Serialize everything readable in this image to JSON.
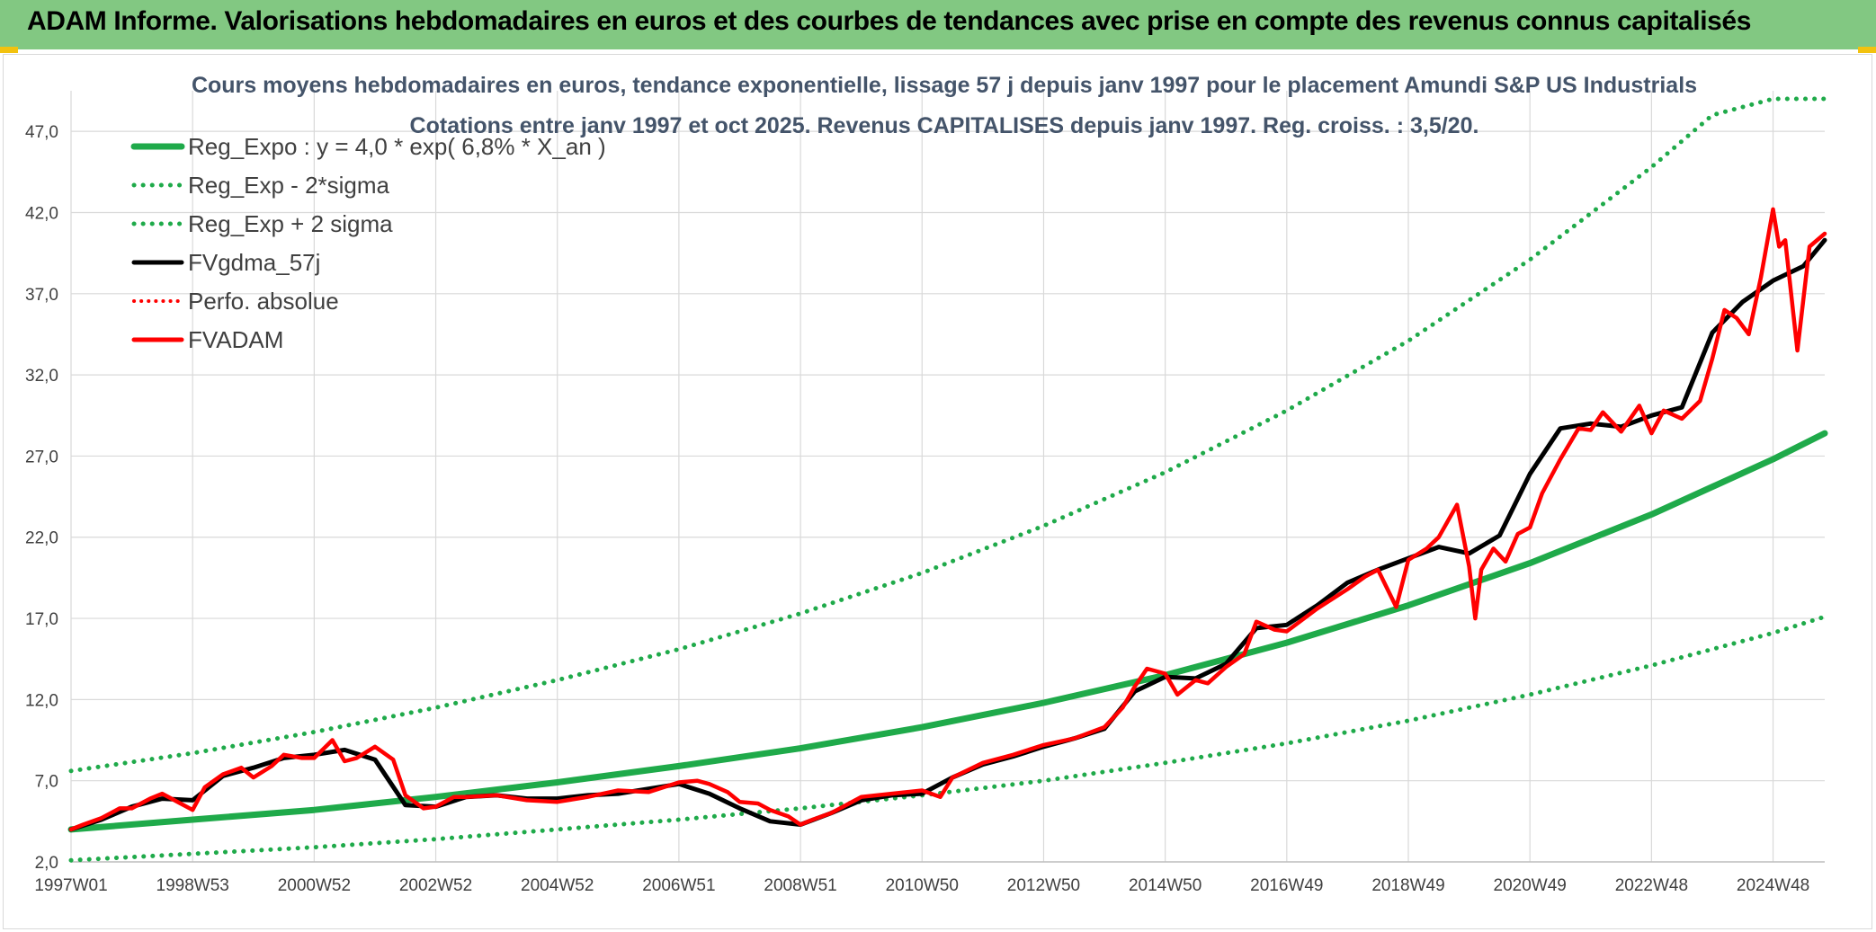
{
  "header": {
    "title": "ADAM Informe. Valorisations hebdomadaires en euros et des courbes de tendances avec prise en compte des revenus connus capitalisés"
  },
  "chart_data": {
    "type": "line",
    "title_lines": [
      "Cours moyens hebdomadaires en euros, tendance exponentielle, lissage 57 j depuis janv 1997 pour le placement Amundi S&P US Industrials",
      "Cotations entre janv 1997 et oct 2025. Revenus CAPITALISES depuis janv 1997. Reg. croiss. : 3,5/20."
    ],
    "x_tick_labels": [
      "1997W01",
      "1998W53",
      "2000W52",
      "2002W52",
      "2004W52",
      "2006W51",
      "2008W51",
      "2010W50",
      "2012W50",
      "2014W50",
      "2016W49",
      "2018W49",
      "2020W49",
      "2022W48",
      "2024W48"
    ],
    "x_tick_years": [
      1997.0,
      1999.0,
      2001.0,
      2003.0,
      2005.0,
      2007.0,
      2009.0,
      2011.0,
      2013.0,
      2015.0,
      2017.0,
      2019.0,
      2021.0,
      2023.0,
      2025.0
    ],
    "x_range": [
      1997.0,
      2025.85
    ],
    "y_tick_labels": [
      "2,0",
      "7,0",
      "12,0",
      "17,0",
      "22,0",
      "27,0",
      "32,0",
      "37,0",
      "42,0",
      "47,0"
    ],
    "y_ticks": [
      2,
      7,
      12,
      17,
      22,
      27,
      32,
      37,
      42,
      47
    ],
    "ylim": [
      2,
      49.5
    ],
    "grid": true,
    "legend_position": "top-left",
    "colors": {
      "regression": "#1faa4a",
      "sigma_bands": "#1faa4a",
      "smoothed": "#000000",
      "perf_absolue": "#ff0000",
      "fvadam": "#ff0000"
    },
    "series": [
      {
        "name": "Reg_Expo : y = 4,0 * exp( 6,8% *  X_an )",
        "style": "solid",
        "color": "#1faa4a",
        "x": [
          1997,
          1999,
          2001,
          2003,
          2005,
          2007,
          2009,
          2011,
          2013,
          2015,
          2017,
          2019,
          2021,
          2023,
          2025,
          2025.85
        ],
        "values": [
          4.0,
          4.6,
          5.2,
          6.0,
          6.9,
          7.9,
          9.0,
          10.3,
          11.8,
          13.5,
          15.5,
          17.8,
          20.4,
          23.4,
          26.8,
          28.4
        ]
      },
      {
        "name": "Reg_Exp - 2*sigma",
        "style": "dotted",
        "color": "#1faa4a",
        "x": [
          1997,
          1999,
          2001,
          2003,
          2005,
          2007,
          2009,
          2011,
          2013,
          2015,
          2017,
          2019,
          2021,
          2023,
          2025,
          2025.85
        ],
        "values": [
          2.1,
          2.5,
          2.9,
          3.4,
          4.0,
          4.6,
          5.3,
          6.1,
          7.0,
          8.1,
          9.3,
          10.7,
          12.3,
          14.1,
          16.1,
          17.1
        ]
      },
      {
        "name": "Reg_Exp + 2 sigma",
        "style": "dotted",
        "color": "#1faa4a",
        "x": [
          1997,
          1999,
          2001,
          2003,
          2005,
          2007,
          2009,
          2011,
          2013,
          2015,
          2017,
          2019,
          2021,
          2023,
          2024.0,
          2025.0,
          2025.85
        ],
        "values": [
          7.6,
          8.7,
          10.0,
          11.5,
          13.2,
          15.1,
          17.3,
          19.8,
          22.7,
          26.0,
          29.8,
          34.1,
          39.1,
          44.8,
          48.0,
          49.0,
          49.0
        ]
      },
      {
        "name": "FVgdma_57j",
        "style": "solid",
        "color": "#000000",
        "x": [
          1997.0,
          1997.5,
          1998.0,
          1998.5,
          1999.0,
          1999.5,
          2000.0,
          2000.5,
          2001.0,
          2001.5,
          2002.0,
          2002.5,
          2003.0,
          2003.5,
          2004.0,
          2004.5,
          2005.0,
          2005.5,
          2006.0,
          2006.5,
          2007.0,
          2007.5,
          2008.0,
          2008.5,
          2009.0,
          2009.5,
          2010.0,
          2010.5,
          2011.0,
          2011.5,
          2012.0,
          2012.5,
          2013.0,
          2013.5,
          2014.0,
          2014.5,
          2015.0,
          2015.5,
          2016.0,
          2016.5,
          2017.0,
          2017.5,
          2018.0,
          2018.5,
          2019.0,
          2019.5,
          2020.0,
          2020.5,
          2021.0,
          2021.5,
          2022.0,
          2022.5,
          2023.0,
          2023.5,
          2024.0,
          2024.5,
          2025.0,
          2025.5,
          2025.85
        ],
        "values": [
          4.0,
          4.6,
          5.4,
          5.9,
          5.8,
          7.3,
          7.8,
          8.4,
          8.6,
          8.9,
          8.3,
          5.5,
          5.4,
          6.0,
          6.1,
          5.9,
          5.9,
          6.1,
          6.2,
          6.5,
          6.8,
          6.2,
          5.3,
          4.5,
          4.3,
          5.0,
          5.8,
          6.1,
          6.2,
          7.2,
          8.0,
          8.5,
          9.1,
          9.6,
          10.2,
          12.5,
          13.4,
          13.3,
          14.2,
          16.4,
          16.6,
          17.8,
          19.2,
          20.0,
          20.7,
          21.4,
          21.0,
          22.1,
          25.9,
          28.7,
          29.0,
          28.8,
          29.5,
          30.0,
          34.6,
          36.5,
          37.8,
          38.7,
          40.3
        ]
      },
      {
        "name": "Perfo. absolue",
        "style": "dotted",
        "color": "#ff0000",
        "x": [],
        "values": []
      },
      {
        "name": "FVADAM",
        "style": "solid",
        "color": "#ff0000",
        "x": [
          1997.0,
          1997.2,
          1997.5,
          1997.8,
          1998.0,
          1998.3,
          1998.5,
          1998.8,
          1999.0,
          1999.2,
          1999.5,
          1999.8,
          2000.0,
          2000.3,
          2000.5,
          2000.8,
          2001.0,
          2001.3,
          2001.5,
          2001.7,
          2002.0,
          2002.3,
          2002.5,
          2002.8,
          2003.0,
          2003.3,
          2003.5,
          2004.0,
          2004.5,
          2005.0,
          2005.5,
          2006.0,
          2006.5,
          2007.0,
          2007.3,
          2007.5,
          2007.8,
          2008.0,
          2008.3,
          2008.5,
          2008.8,
          2009.0,
          2009.2,
          2009.5,
          2009.8,
          2010.0,
          2010.5,
          2011.0,
          2011.3,
          2011.5,
          2012.0,
          2012.5,
          2013.0,
          2013.5,
          2014.0,
          2014.3,
          2014.5,
          2014.7,
          2015.0,
          2015.2,
          2015.5,
          2015.7,
          2016.0,
          2016.3,
          2016.5,
          2016.8,
          2017.0,
          2017.5,
          2018.0,
          2018.3,
          2018.5,
          2018.8,
          2019.0,
          2019.3,
          2019.5,
          2019.8,
          2020.0,
          2020.1,
          2020.2,
          2020.4,
          2020.6,
          2020.8,
          2021.0,
          2021.2,
          2021.5,
          2021.8,
          2022.0,
          2022.2,
          2022.5,
          2022.8,
          2023.0,
          2023.2,
          2023.5,
          2023.8,
          2024.0,
          2024.2,
          2024.4,
          2024.6,
          2024.8,
          2025.0,
          2025.1,
          2025.2,
          2025.4,
          2025.6,
          2025.85
        ],
        "values": [
          4.0,
          4.3,
          4.7,
          5.3,
          5.3,
          5.9,
          6.2,
          5.6,
          5.2,
          6.6,
          7.4,
          7.8,
          7.2,
          7.9,
          8.6,
          8.4,
          8.4,
          9.5,
          8.2,
          8.4,
          9.1,
          8.3,
          6.1,
          5.3,
          5.4,
          6.0,
          6.0,
          6.1,
          5.8,
          5.7,
          6.0,
          6.4,
          6.3,
          6.9,
          7.0,
          6.8,
          6.3,
          5.7,
          5.6,
          5.2,
          4.8,
          4.3,
          4.6,
          5.0,
          5.6,
          6.0,
          6.2,
          6.4,
          6.0,
          7.2,
          8.1,
          8.6,
          9.2,
          9.6,
          10.3,
          11.5,
          12.8,
          13.9,
          13.6,
          12.3,
          13.2,
          13.0,
          14.0,
          14.8,
          16.8,
          16.3,
          16.2,
          17.6,
          18.8,
          19.6,
          20.0,
          17.7,
          20.6,
          21.3,
          22.0,
          24.0,
          20.2,
          17.0,
          20.0,
          21.3,
          20.5,
          22.2,
          22.6,
          24.7,
          26.8,
          28.7,
          28.6,
          29.7,
          28.5,
          30.1,
          28.4,
          29.8,
          29.3,
          30.4,
          33.0,
          36.0,
          35.5,
          34.5,
          38.0,
          42.2,
          39.9,
          40.3,
          33.5,
          39.9,
          40.7
        ]
      }
    ]
  }
}
